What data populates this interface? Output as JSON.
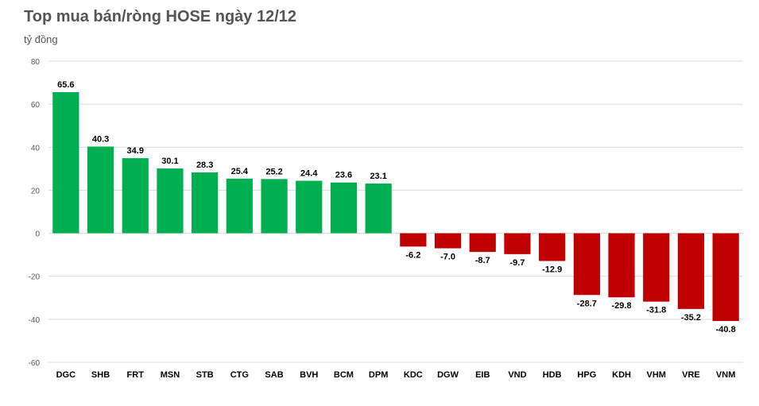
{
  "chart_data": {
    "type": "bar",
    "title": "Top mua bán/ròng HOSE ngày 12/12",
    "ylabel": "tỷ đồng",
    "xlabel": "",
    "ylim": [
      -60,
      80
    ],
    "yticks": [
      80,
      60,
      40,
      20,
      0,
      -20,
      -40,
      -60
    ],
    "grid": true,
    "categories": [
      "DGC",
      "SHB",
      "FRT",
      "MSN",
      "STB",
      "CTG",
      "SAB",
      "BVH",
      "BCM",
      "DPM",
      "KDC",
      "DGW",
      "EIB",
      "VND",
      "HDB",
      "HPG",
      "KDH",
      "VHM",
      "VRE",
      "VNM"
    ],
    "values": [
      65.6,
      40.3,
      34.9,
      30.1,
      28.3,
      25.4,
      25.2,
      24.4,
      23.6,
      23.1,
      -6.2,
      -7.0,
      -8.7,
      -9.7,
      -12.9,
      -28.7,
      -29.8,
      -31.8,
      -35.2,
      -40.8
    ],
    "labels": [
      "65.6",
      "40.3",
      "34.9",
      "30.1",
      "28.3",
      "25.4",
      "25.2",
      "24.4",
      "23.6",
      "23.1",
      "-6.2",
      "-7.0",
      "-8.7",
      "-9.7",
      "-12.9",
      "-28.7",
      "-29.8",
      "-31.8",
      "-35.2",
      "-40.8"
    ],
    "colors": {
      "positive": "#00b050",
      "negative": "#c00000"
    }
  }
}
